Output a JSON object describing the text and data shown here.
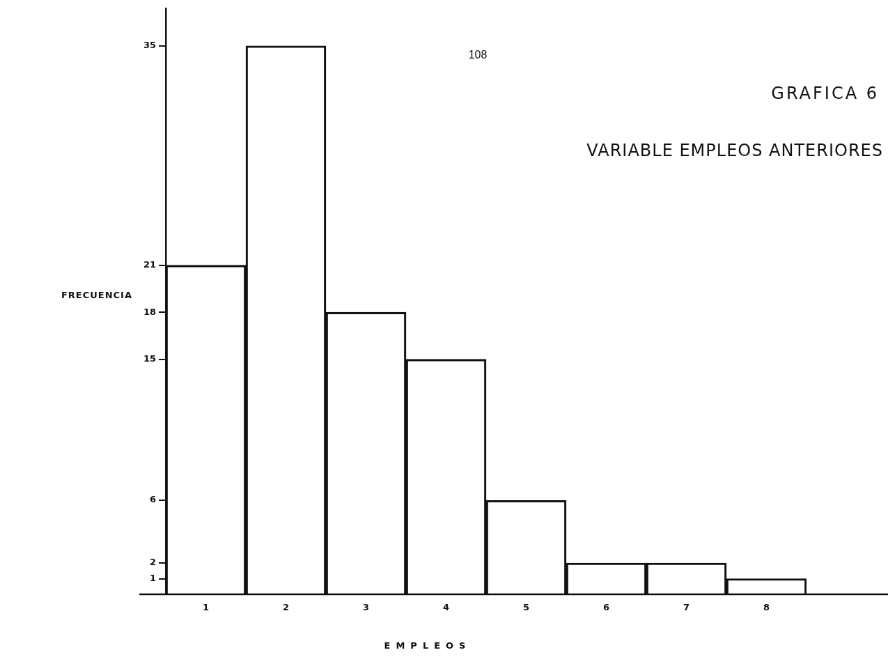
{
  "chart_data": {
    "type": "bar",
    "title": "GRAFICA 6",
    "subtitle": "VARIABLE EMPLEOS ANTERIORES",
    "xlabel": "EMPLEOS",
    "ylabel": "FRECUENCIA",
    "categories": [
      "1",
      "2",
      "3",
      "4",
      "5",
      "6",
      "7",
      "8"
    ],
    "values": [
      21,
      35,
      18,
      15,
      6,
      2,
      2,
      1
    ],
    "color": "#111111",
    "ylim": [
      0,
      37.4
    ],
    "yticks": [
      1,
      2,
      6,
      15,
      18,
      21,
      35
    ],
    "grid": false,
    "legend": false,
    "annotations": [
      "108"
    ]
  }
}
